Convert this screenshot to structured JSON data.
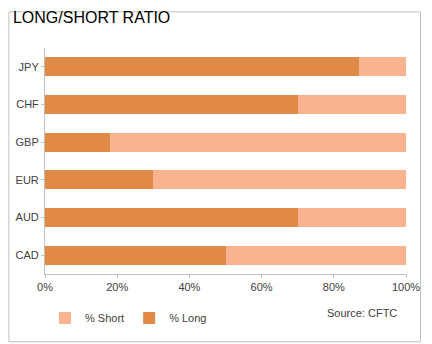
{
  "chart_data": {
    "type": "bar",
    "title": "LONG/SHORT RATIO",
    "orientation": "horizontal",
    "stacked": true,
    "grid": false,
    "legend": "bottom left",
    "categories": [
      "JPY",
      "CHF",
      "GBP",
      "EUR",
      "AUD",
      "CAD"
    ],
    "series": [
      {
        "name": "% Long",
        "color": "#E08A47",
        "values": [
          87,
          70,
          18,
          30,
          70,
          50
        ]
      },
      {
        "name": "% Short",
        "color": "#F9B48F",
        "values": [
          13,
          30,
          82,
          70,
          30,
          50
        ]
      }
    ],
    "xlim": [
      0,
      100
    ],
    "xticks": [
      {
        "value": 0,
        "label": "0%"
      },
      {
        "value": 20,
        "label": "20%"
      },
      {
        "value": 40,
        "label": "40%"
      },
      {
        "value": 60,
        "label": "60%"
      },
      {
        "value": 80,
        "label": "80%"
      },
      {
        "value": 100,
        "label": "100%"
      }
    ],
    "annotations": [
      "Source: CFTC"
    ]
  }
}
